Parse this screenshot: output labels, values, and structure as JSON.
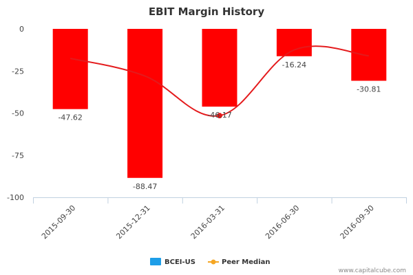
{
  "chart_data": {
    "type": "bar",
    "title": "EBIT Margin History",
    "categories": [
      "2015-09-30",
      "2015-12-31",
      "2016-03-31",
      "2016-06-30",
      "2016-09-30"
    ],
    "series": [
      {
        "name": "BCEI-US",
        "kind": "bar",
        "values": [
          -47.62,
          -88.47,
          -46.17,
          -16.24,
          -30.81
        ],
        "data_labels": [
          "-47.62",
          "-88.47",
          "-46.17",
          "-16.24",
          "-30.81"
        ]
      },
      {
        "name": "Peer Median",
        "kind": "line",
        "values": [
          -17.5,
          -28,
          -51.5,
          -12.5,
          -16
        ]
      }
    ],
    "ylim": [
      -100,
      0
    ],
    "yticks": [
      0,
      -25,
      -50,
      -75,
      -100
    ],
    "ytick_labels": [
      "0",
      "-25",
      "-50",
      "-75",
      "-100"
    ],
    "legend_position": "bottom-center",
    "grid": false
  },
  "colors": {
    "bar": "#ff0000",
    "line": "#e41a1c",
    "legend_bar_swatch": "#1e9ee8",
    "legend_line_swatch": "#f5a623"
  },
  "credit": "www.capitalcube.com"
}
